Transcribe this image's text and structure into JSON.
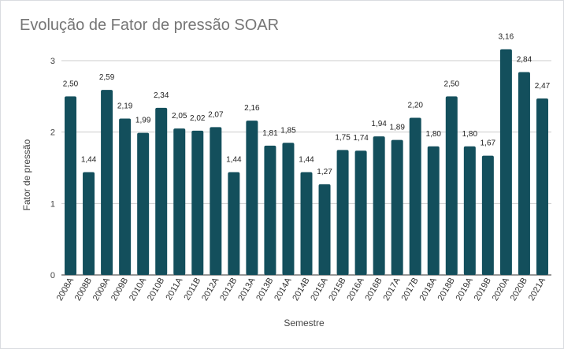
{
  "chart_data": {
    "type": "bar",
    "title": "Evolução de Fator de pressão SOAR",
    "xlabel": "Semestre",
    "ylabel": "Fator de pressão",
    "ylim": [
      0,
      3
    ],
    "yticks": [
      "0",
      "1",
      "2",
      "3"
    ],
    "grid": true,
    "legend": "none",
    "bar_color": "#134f5c",
    "categories": [
      "2008A",
      "2008B",
      "2009A",
      "2009B",
      "2010A",
      "2010B",
      "2011A",
      "2011B",
      "2012A",
      "2012B",
      "2013A",
      "2013B",
      "2014A",
      "2014B",
      "2015A",
      "2015B",
      "2016A",
      "2016B",
      "2017A",
      "2017B",
      "2018A",
      "2018B",
      "2019A",
      "2019B",
      "2020A",
      "2020B",
      "2021A"
    ],
    "values": [
      2.5,
      1.44,
      2.59,
      2.19,
      1.99,
      2.34,
      2.05,
      2.02,
      2.07,
      1.44,
      2.16,
      1.81,
      1.85,
      1.44,
      1.27,
      1.75,
      1.74,
      1.94,
      1.89,
      2.2,
      1.8,
      2.5,
      1.8,
      1.67,
      3.16,
      2.84,
      2.47
    ],
    "data_labels": [
      "2,50",
      "1,44",
      "2,59",
      "2,19",
      "1,99",
      "2,34",
      "2,05",
      "2,02",
      "2,07",
      "1,44",
      "2,16",
      "1,81",
      "1,85",
      "1,44",
      "1,27",
      "1,75",
      "1,74",
      "1,94",
      "1,89",
      "2,20",
      "1,80",
      "2,50",
      "1,80",
      "1,67",
      "3,16",
      "2,84",
      "2,47"
    ]
  }
}
